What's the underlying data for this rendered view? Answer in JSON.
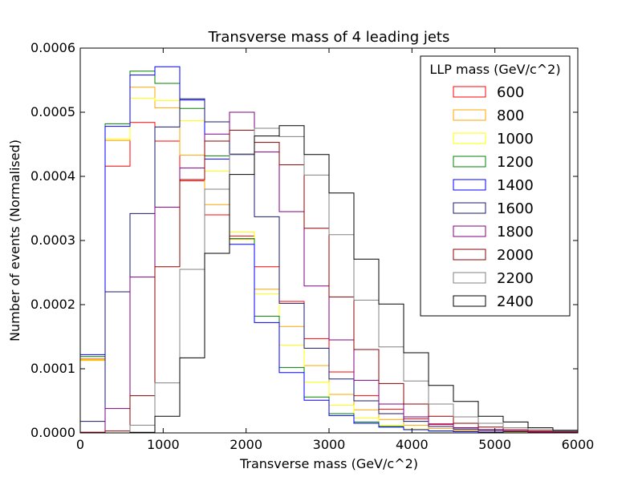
{
  "chart_data": {
    "type": "histogram-step",
    "title": "Transverse mass of 4 leading jets",
    "xlabel": "Transverse mass (GeV/c^2)",
    "ylabel": "Number of events (Normalised)",
    "xlim": [
      0,
      6000
    ],
    "ylim": [
      0,
      0.0006
    ],
    "x_ticks": [
      0,
      1000,
      2000,
      3000,
      4000,
      5000,
      6000
    ],
    "x_tick_labels": [
      "0",
      "1000",
      "2000",
      "3000",
      "4000",
      "5000",
      "6000"
    ],
    "y_ticks": [
      0,
      0.0001,
      0.0002,
      0.0003,
      0.0004,
      0.0005,
      0.0006
    ],
    "y_tick_labels": [
      "0.0000",
      "0.0001",
      "0.0002",
      "0.0003",
      "0.0004",
      "0.0005",
      "0.0006"
    ],
    "bin_edges": [
      0,
      300,
      600,
      900,
      1200,
      1500,
      1800,
      2100,
      2400,
      2700,
      3000,
      3300,
      3600,
      3900,
      4200,
      4500,
      4800,
      5100,
      5400,
      5700,
      6000
    ],
    "legend_title": "LLP mass (GeV/c^2)",
    "legend_position": "top-right",
    "series": [
      {
        "name": "600",
        "color": "#ff0000",
        "values": [
          0.000115,
          0.000416,
          0.000484,
          0.000455,
          0.000393,
          0.00034,
          0.000307,
          0.000259,
          0.000205,
          0.000147,
          9.5e-05,
          5.8e-05,
          3.7e-05,
          2.2e-05,
          1.3e-05,
          8e-06,
          5e-06,
          3e-06,
          2e-06,
          1e-06
        ]
      },
      {
        "name": "800",
        "color": "#ffa500",
        "values": [
          0.000113,
          0.000456,
          0.000539,
          0.000507,
          0.000433,
          0.000356,
          0.000302,
          0.000224,
          0.000166,
          0.000105,
          6e-05,
          3.6e-05,
          2.1e-05,
          1.2e-05,
          7e-06,
          4e-06,
          2e-06,
          1e-06,
          1e-06,
          0.0
        ]
      },
      {
        "name": "1000",
        "color": "#ffff00",
        "values": [
          0.000114,
          0.000458,
          0.000522,
          0.000518,
          0.000487,
          0.000408,
          0.000313,
          0.000217,
          0.000137,
          7.9e-05,
          4.3e-05,
          2.3e-05,
          1.2e-05,
          6e-06,
          3e-06,
          2e-06,
          1e-06,
          1e-06,
          0.0,
          0.0
        ]
      },
      {
        "name": "1200",
        "color": "#008000",
        "values": [
          0.000119,
          0.000482,
          0.000564,
          0.000545,
          0.000506,
          0.000432,
          0.000303,
          0.000182,
          0.000102,
          5.6e-05,
          3e-05,
          1.7e-05,
          1e-05,
          5e-06,
          3e-06,
          2e-06,
          1e-06,
          0.0,
          0.0,
          0.0
        ]
      },
      {
        "name": "1400",
        "color": "#0000ff",
        "values": [
          0.000122,
          0.000478,
          0.000558,
          0.000571,
          0.000519,
          0.000427,
          0.000294,
          0.000172,
          9.4e-05,
          5.1e-05,
          2.7e-05,
          1.5e-05,
          9e-06,
          5e-06,
          3e-06,
          2e-06,
          1e-06,
          0.0,
          0.0,
          0.0
        ]
      },
      {
        "name": "1600",
        "color": "#191970",
        "values": [
          1.8e-05,
          0.00022,
          0.000342,
          0.000477,
          0.000521,
          0.000485,
          0.000434,
          0.000337,
          0.000202,
          0.000132,
          8.4e-05,
          5e-05,
          3e-05,
          1.8e-05,
          1e-05,
          6e-06,
          4e-06,
          2e-06,
          1e-06,
          1e-06
        ]
      },
      {
        "name": "1800",
        "color": "#800080",
        "values": [
          1e-06,
          3.8e-05,
          0.000243,
          0.000352,
          0.000413,
          0.000466,
          0.0005,
          0.000438,
          0.000345,
          0.000229,
          0.000145,
          8.2e-05,
          4.5e-05,
          2.5e-05,
          1.4e-05,
          8e-06,
          5e-06,
          3e-06,
          1e-06,
          1e-06
        ]
      },
      {
        "name": "2000",
        "color": "#8b0000",
        "values": [
          1e-06,
          3e-06,
          5.8e-05,
          0.000259,
          0.000395,
          0.000455,
          0.000472,
          0.000453,
          0.000418,
          0.000319,
          0.000212,
          0.00013,
          7.7e-05,
          4.5e-05,
          2.6e-05,
          1.5e-05,
          9e-06,
          5e-06,
          3e-06,
          2e-06
        ]
      },
      {
        "name": "2200",
        "color": "#808080",
        "values": [
          0.0,
          0.0,
          1.2e-05,
          7.8e-05,
          0.000255,
          0.00038,
          0.000435,
          0.000475,
          0.000462,
          0.000402,
          0.000309,
          0.000207,
          0.000134,
          8.1e-05,
          4.5e-05,
          2.5e-05,
          1.5e-05,
          8e-06,
          5e-06,
          3e-06
        ]
      },
      {
        "name": "2400",
        "color": "#000000",
        "values": [
          0.0,
          0.0,
          1e-06,
          2.6e-05,
          0.000117,
          0.00028,
          0.000403,
          0.000463,
          0.000479,
          0.000434,
          0.000374,
          0.000271,
          0.000201,
          0.000125,
          7.4e-05,
          4.9e-05,
          2.6e-05,
          1.7e-05,
          8e-06,
          4e-06
        ]
      }
    ]
  }
}
